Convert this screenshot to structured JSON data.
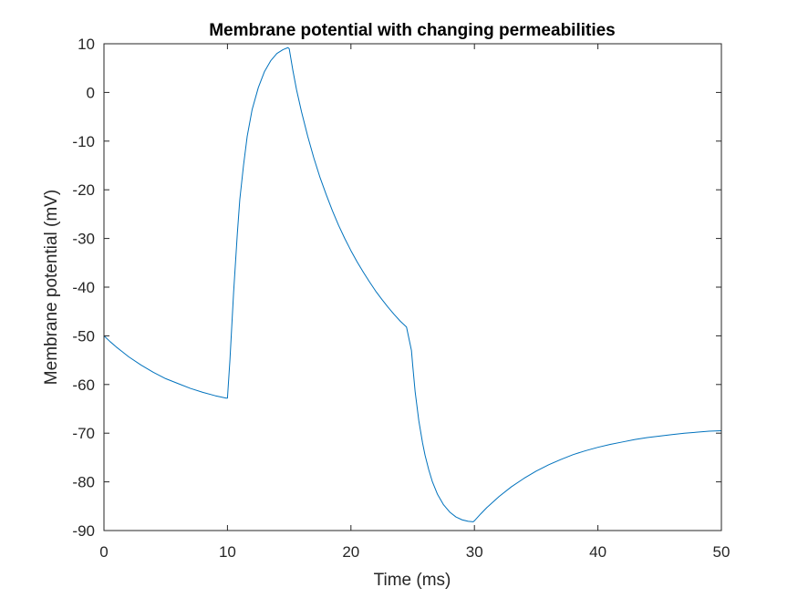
{
  "chart_data": {
    "type": "line",
    "title": "Membrane potential with changing permeabilities",
    "xlabel": "Time (ms)",
    "ylabel": "Membrane potential (mV)",
    "xlim": [
      0,
      50
    ],
    "ylim": [
      -90,
      10
    ],
    "xticks": [
      0,
      10,
      20,
      30,
      40,
      50
    ],
    "yticks": [
      10,
      0,
      -10,
      -20,
      -30,
      -40,
      -50,
      -60,
      -70,
      -80,
      -90
    ],
    "grid": false,
    "box": true,
    "legend": "none",
    "colors": {
      "line": "#0072BD",
      "axes": "#262626",
      "title": "#000000",
      "background": "#FFFFFF"
    },
    "series": [
      {
        "x": [
          0,
          0.5,
          1,
          1.5,
          2,
          3,
          4,
          5,
          6,
          7,
          8,
          9,
          9.9,
          10,
          10.2,
          10.5,
          10.8,
          11,
          11.3,
          11.6,
          12,
          12.5,
          13,
          13.5,
          14,
          14.5,
          14.9,
          15,
          15.3,
          15.6,
          16,
          16.5,
          17,
          17.5,
          18,
          18.5,
          19,
          19.5,
          20,
          20.5,
          21,
          21.5,
          22,
          22.5,
          23,
          23.5,
          24,
          24.5,
          24.9,
          25,
          25.2,
          25.5,
          25.8,
          26,
          26.3,
          26.6,
          27,
          27.5,
          28,
          28.5,
          29,
          29.5,
          29.9,
          30,
          30.5,
          31,
          32,
          33,
          34,
          35,
          36,
          37,
          38,
          39,
          40,
          41,
          42,
          43,
          44,
          45,
          46,
          47,
          48,
          49,
          50
        ],
        "values": [
          -50,
          -51.2,
          -52.3,
          -53.3,
          -54.3,
          -56.0,
          -57.5,
          -58.8,
          -59.8,
          -60.8,
          -61.6,
          -62.3,
          -62.8,
          -62.8,
          -55.0,
          -41.0,
          -29.0,
          -22.0,
          -15.0,
          -9.0,
          -3.5,
          1.0,
          4.3,
          6.5,
          8.0,
          8.8,
          9.2,
          9.0,
          4.5,
          0.5,
          -4.0,
          -9.0,
          -13.5,
          -17.5,
          -21.0,
          -24.3,
          -27.3,
          -30.0,
          -32.5,
          -34.8,
          -36.9,
          -38.9,
          -40.8,
          -42.5,
          -44.1,
          -45.6,
          -47.0,
          -48.2,
          -53.0,
          -56.0,
          -61.5,
          -67.5,
          -72.0,
          -74.5,
          -77.5,
          -80.0,
          -82.5,
          -84.7,
          -86.2,
          -87.2,
          -87.8,
          -88.1,
          -88.2,
          -88.0,
          -86.6,
          -85.3,
          -83.0,
          -81.0,
          -79.3,
          -77.8,
          -76.5,
          -75.4,
          -74.4,
          -73.6,
          -72.9,
          -72.3,
          -71.8,
          -71.3,
          -70.9,
          -70.6,
          -70.3,
          -70.0,
          -69.8,
          -69.6,
          -69.5
        ]
      }
    ]
  }
}
